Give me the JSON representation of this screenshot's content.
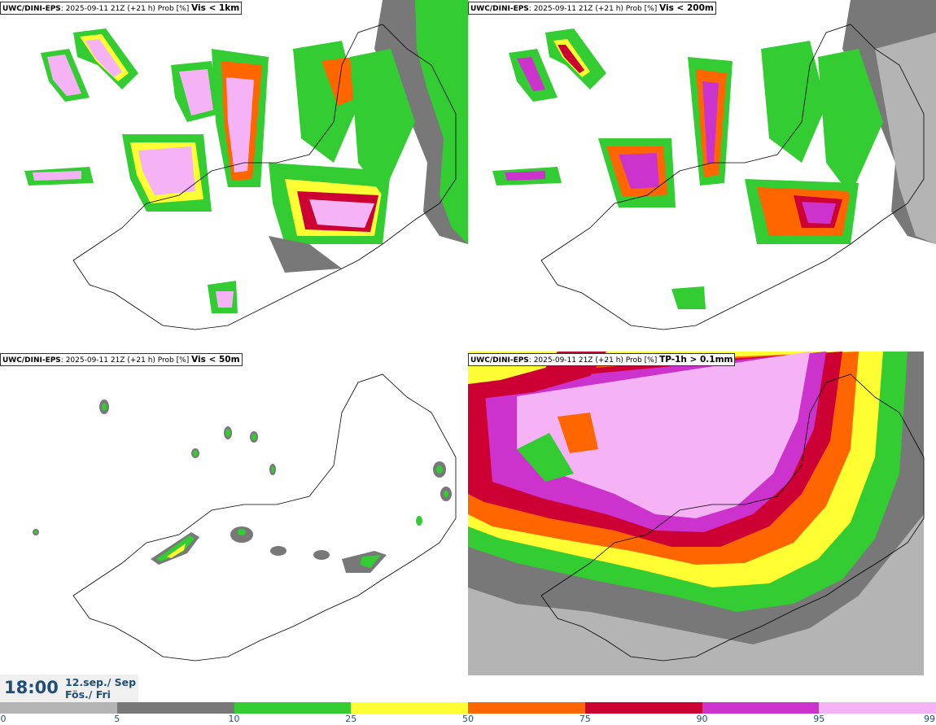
{
  "panels": [
    {
      "source": "UWC/DINI-EPS",
      "meta": ": 2025-09-11 21Z (+21 h) Prob [%] ",
      "variable": "Vis < 1km"
    },
    {
      "source": "UWC/DINI-EPS",
      "meta": ": 2025-09-11 21Z (+21 h) Prob [%] ",
      "variable": "Vis < 200m"
    },
    {
      "source": "UWC/DINI-EPS",
      "meta": ": 2025-09-11 21Z (+21 h) Prob [%] ",
      "variable": "Vis < 50m"
    },
    {
      "source": "UWC/DINI-EPS",
      "meta": ": 2025-09-11 21Z (+21 h) Prob [%] ",
      "variable": "TP-1h > 0.1mm"
    }
  ],
  "valid_time": {
    "time": "18:00",
    "date": "12.sep./ Sep",
    "day": "Fös./ Fri"
  },
  "colorbar": {
    "ticks": [
      "0",
      "5",
      "10",
      "25",
      "50",
      "75",
      "90",
      "95",
      "99"
    ],
    "colors": [
      "#b4b4b4",
      "#787878",
      "#33cc33",
      "#ffff33",
      "#ff6600",
      "#cc0033",
      "#cc33cc",
      "#f5b3f5"
    ]
  },
  "map_colors": {
    "outline": "#000000",
    "background": "#ffffff"
  }
}
